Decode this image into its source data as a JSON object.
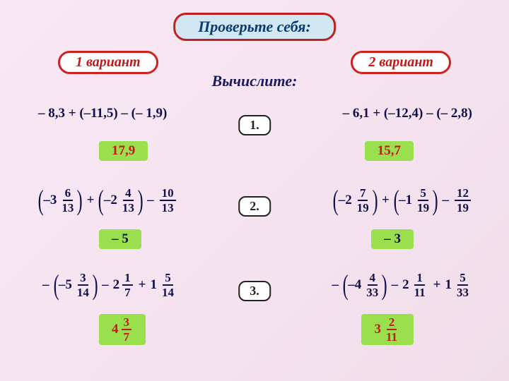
{
  "title": "Проверьте себя:",
  "variant_left": "1 вариант",
  "variant_right": "2 вариант",
  "subtitle": "Вычислите:",
  "badges": {
    "n1": "1.",
    "n2": "2.",
    "n3": "3."
  },
  "row1": {
    "left_expr": "– 8,3 + (–11,5) – (– 1,9)",
    "right_expr": "– 6,1 + (–12,4) – (– 2,8)",
    "left_ans": "17,9",
    "right_ans": "15,7"
  },
  "row2": {
    "left": {
      "t1w": "–3",
      "t1n": "6",
      "t1d": "13",
      "t2w": "–2",
      "t2n": "4",
      "t2d": "13",
      "t3n": "10",
      "t3d": "13"
    },
    "right": {
      "t1w": "–2",
      "t1n": "7",
      "t1d": "19",
      "t2w": "–1",
      "t2n": "5",
      "t2d": "19",
      "t3n": "12",
      "t3d": "19"
    },
    "left_ans": "– 5",
    "right_ans": "– 3"
  },
  "row3": {
    "left": {
      "t1w": "–5",
      "t1n": "3",
      "t1d": "14",
      "t2w": "2",
      "t2n": "1",
      "t2d": "7",
      "t3w": "1",
      "t3n": "5",
      "t3d": "14"
    },
    "right": {
      "t1w": "–4",
      "t1n": "4",
      "t1d": "33",
      "t2w": "2",
      "t2n": "1",
      "t2d": "11",
      "t3w": "1",
      "t3n": "5",
      "t3d": "33"
    },
    "left_ans": {
      "w": "4",
      "n": "3",
      "d": "7"
    },
    "right_ans": {
      "w": "3",
      "n": "2",
      "d": "11"
    }
  },
  "ops": {
    "plus": "+",
    "minus": "–"
  },
  "colors": {
    "accent_red": "#c41818",
    "accent_blue": "#0f0f4a",
    "badge_bg": "#9adf4d",
    "title_bg": "#d1e8f4"
  }
}
